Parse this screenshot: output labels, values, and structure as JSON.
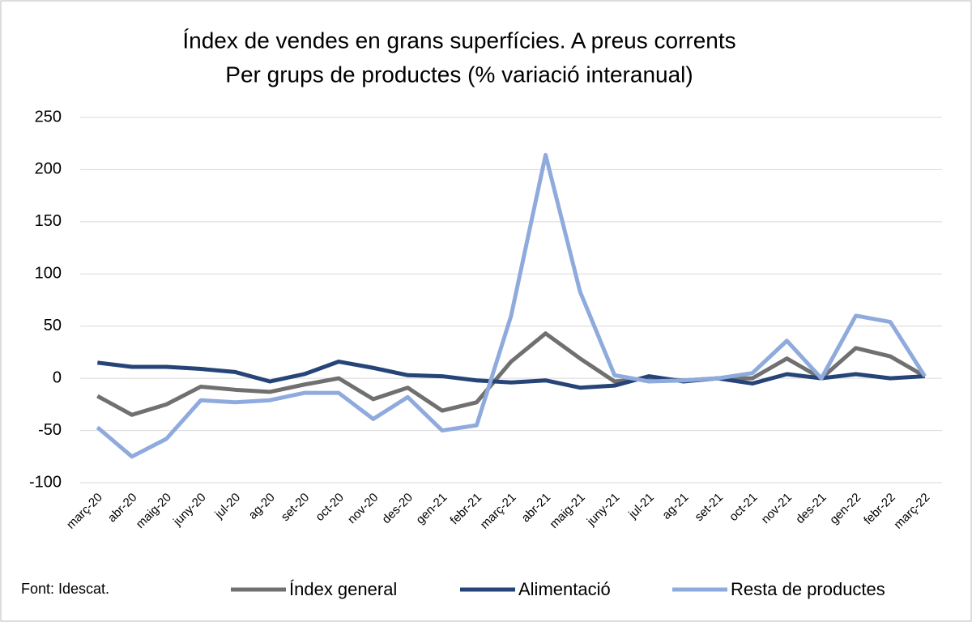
{
  "chart_data": {
    "type": "line",
    "title": "Índex de vendes  en grans superfícies. A preus corrents",
    "subtitle": "Per grups de productes (% variació interanual)",
    "source": "Font: Idescat.",
    "categories": [
      "març-20",
      "abr-20",
      "maig-20",
      "juny-20",
      "jul-20",
      "ag-20",
      "set-20",
      "oct-20",
      "nov-20",
      "des-20",
      "gen-21",
      "febr-21",
      "març-21",
      "abr-21",
      "maig-21",
      "juny-21",
      "jul-21",
      "ag-21",
      "set-21",
      "oct-21",
      "nov-21",
      "des-21",
      "gen-22",
      "febr-22",
      "març-22"
    ],
    "series": [
      {
        "name": "Índex general",
        "color": "#707070",
        "values": [
          -17,
          -35,
          -25,
          -8,
          -11,
          -13,
          -6,
          0,
          -20,
          -9,
          -31,
          -23,
          16,
          43,
          19,
          -3,
          0,
          -2,
          0,
          0,
          19,
          0,
          29,
          21,
          2
        ]
      },
      {
        "name": "Alimentació",
        "color": "#264478",
        "values": [
          15,
          11,
          11,
          9,
          6,
          -3,
          4,
          16,
          10,
          3,
          2,
          -2,
          -4,
          -2,
          -9,
          -7,
          2,
          -3,
          0,
          -5,
          4,
          0,
          4,
          0,
          2
        ]
      },
      {
        "name": "Resta de productes",
        "color": "#8faadc",
        "values": [
          -47,
          -75,
          -58,
          -21,
          -23,
          -21,
          -14,
          -14,
          -39,
          -18,
          -50,
          -45,
          60,
          214,
          83,
          3,
          -3,
          -2,
          0,
          5,
          36,
          0,
          60,
          54,
          2
        ]
      }
    ],
    "ylim": [
      -100,
      250
    ],
    "yticks": [
      -100,
      -50,
      0,
      50,
      100,
      150,
      200,
      250
    ],
    "grid": true,
    "legend": "bottom"
  }
}
